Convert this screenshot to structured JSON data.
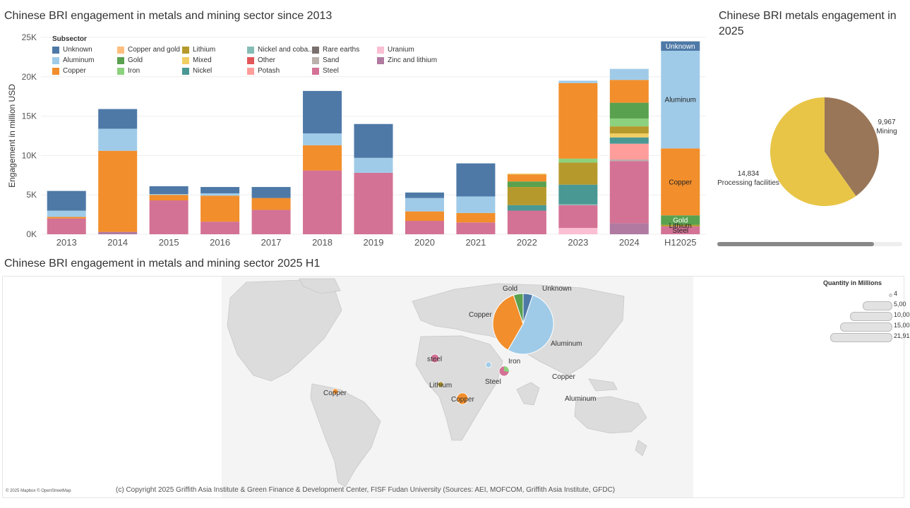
{
  "titles": {
    "bar": "Chinese BRI engagement in metals and mining sector since 2013",
    "pie": "Chinese BRI metals engagement in 2025",
    "map": "Chinese BRI engagement in metals and mining sector 2025 H1"
  },
  "colors": {
    "Unknown": "#4e79a7",
    "Aluminum": "#a0cbe8",
    "Copper": "#f28e2b",
    "Copper and gold": "#ffbe7d",
    "Gold": "#59a14f",
    "Iron": "#8cd17d",
    "Lithium": "#b6992d",
    "Mixed": "#f1ce63",
    "Nickel": "#499894",
    "Nickel and cobalt": "#86bcb6",
    "Other": "#e15759",
    "Potash": "#ff9d9a",
    "Rare earths": "#79706e",
    "Sand": "#bab0ac",
    "Steel": "#d37295",
    "Uranium": "#fabfd2",
    "Zinc and lithium": "#b07aa1",
    "Mining": "#9a7658",
    "Processing facilities": "#e8c547"
  },
  "legend": {
    "title": "Subsector",
    "items": [
      {
        "key": "Unknown",
        "label": "Unknown"
      },
      {
        "key": "Copper and gold",
        "label": "Copper and gold"
      },
      {
        "key": "Lithium",
        "label": "Lithium"
      },
      {
        "key": "Nickel and cobalt",
        "label": "Nickel and coba.."
      },
      {
        "key": "Rare earths",
        "label": "Rare earths"
      },
      {
        "key": "Uranium",
        "label": "Uranium"
      },
      {
        "key": "Aluminum",
        "label": "Aluminum"
      },
      {
        "key": "Gold",
        "label": "Gold"
      },
      {
        "key": "Mixed",
        "label": "Mixed"
      },
      {
        "key": "Other",
        "label": "Other"
      },
      {
        "key": "Sand",
        "label": "Sand"
      },
      {
        "key": "Zinc and lithium",
        "label": "Zinc and lithium"
      },
      {
        "key": "Copper",
        "label": "Copper"
      },
      {
        "key": "Iron",
        "label": "Iron"
      },
      {
        "key": "Nickel",
        "label": "Nickel"
      },
      {
        "key": "Potash",
        "label": "Potash"
      },
      {
        "key": "Steel",
        "label": "Steel"
      }
    ]
  },
  "chart_data": [
    {
      "type": "bar",
      "title": "Chinese BRI engagement in metals and mining sector since 2013",
      "ylabel": "Engagement in million USD",
      "xlabel": "",
      "ylim": [
        0,
        25000
      ],
      "yticks": [
        "0K",
        "5K",
        "10K",
        "15K",
        "20K",
        "25K"
      ],
      "categories": [
        "2013",
        "2014",
        "2015",
        "2016",
        "2017",
        "2018",
        "2019",
        "2020",
        "2021",
        "2022",
        "2023",
        "2024",
        "H12025"
      ],
      "stacks": [
        [
          {
            "s": "Steel",
            "v": 2000
          },
          {
            "s": "Copper",
            "v": 200
          },
          {
            "s": "Aluminum",
            "v": 800
          },
          {
            "s": "Unknown",
            "v": 2500
          }
        ],
        [
          {
            "s": "Zinc and lithium",
            "v": 300
          },
          {
            "s": "Copper",
            "v": 10300
          },
          {
            "s": "Aluminum",
            "v": 2800
          },
          {
            "s": "Unknown",
            "v": 2500
          }
        ],
        [
          {
            "s": "Steel",
            "v": 4300
          },
          {
            "s": "Copper",
            "v": 700
          },
          {
            "s": "Aluminum",
            "v": 100
          },
          {
            "s": "Unknown",
            "v": 1000
          }
        ],
        [
          {
            "s": "Steel",
            "v": 1600
          },
          {
            "s": "Copper",
            "v": 3300
          },
          {
            "s": "Aluminum",
            "v": 300
          },
          {
            "s": "Unknown",
            "v": 800
          }
        ],
        [
          {
            "s": "Steel",
            "v": 3100
          },
          {
            "s": "Copper",
            "v": 1500
          },
          {
            "s": "Unknown",
            "v": 1400
          }
        ],
        [
          {
            "s": "Steel",
            "v": 8100
          },
          {
            "s": "Copper",
            "v": 3200
          },
          {
            "s": "Aluminum",
            "v": 1500
          },
          {
            "s": "Unknown",
            "v": 5400
          }
        ],
        [
          {
            "s": "Steel",
            "v": 7800
          },
          {
            "s": "Aluminum",
            "v": 1900
          },
          {
            "s": "Unknown",
            "v": 4300
          }
        ],
        [
          {
            "s": "Steel",
            "v": 1700
          },
          {
            "s": "Copper",
            "v": 1200
          },
          {
            "s": "Aluminum",
            "v": 1700
          },
          {
            "s": "Unknown",
            "v": 700
          }
        ],
        [
          {
            "s": "Steel",
            "v": 1500
          },
          {
            "s": "Copper",
            "v": 1200
          },
          {
            "s": "Aluminum",
            "v": 2100
          },
          {
            "s": "Unknown",
            "v": 4200
          }
        ],
        [
          {
            "s": "Steel",
            "v": 3000
          },
          {
            "s": "Nickel",
            "v": 700
          },
          {
            "s": "Lithium",
            "v": 2300
          },
          {
            "s": "Gold",
            "v": 700
          },
          {
            "s": "Copper",
            "v": 900
          },
          {
            "s": "Mixed",
            "v": 100
          }
        ],
        [
          {
            "s": "Uranium",
            "v": 800
          },
          {
            "s": "Steel",
            "v": 2900
          },
          {
            "s": "Nickel and cobalt",
            "v": 100
          },
          {
            "s": "Nickel",
            "v": 2500
          },
          {
            "s": "Lithium",
            "v": 2800
          },
          {
            "s": "Iron",
            "v": 500
          },
          {
            "s": "Copper",
            "v": 9600
          },
          {
            "s": "Aluminum",
            "v": 300
          }
        ],
        [
          {
            "s": "Zinc and lithium",
            "v": 1400
          },
          {
            "s": "Steel",
            "v": 7900
          },
          {
            "s": "Sand",
            "v": 200
          },
          {
            "s": "Potash",
            "v": 2000
          },
          {
            "s": "Nickel",
            "v": 800
          },
          {
            "s": "Mixed",
            "v": 500
          },
          {
            "s": "Lithium",
            "v": 900
          },
          {
            "s": "Iron",
            "v": 1000
          },
          {
            "s": "Gold",
            "v": 2000
          },
          {
            "s": "Copper",
            "v": 2900
          },
          {
            "s": "Aluminum",
            "v": 1400
          }
        ],
        [
          {
            "s": "Steel",
            "v": 1000
          },
          {
            "s": "Lithium",
            "v": 200
          },
          {
            "s": "Gold",
            "v": 1200
          },
          {
            "s": "Copper",
            "v": 8500
          },
          {
            "s": "Aluminum",
            "v": 12400
          },
          {
            "s": "Unknown",
            "v": 1200
          }
        ]
      ],
      "segment_labels": [
        {
          "col": 12,
          "s": "Unknown",
          "text": "Unknown"
        },
        {
          "col": 12,
          "s": "Aluminum",
          "text": "Aluminum"
        },
        {
          "col": 12,
          "s": "Copper",
          "text": "Copper"
        },
        {
          "col": 12,
          "s": "Gold",
          "text": "Gold"
        },
        {
          "col": 12,
          "s": "Lithium",
          "text": "Lithium"
        },
        {
          "col": 12,
          "s": "Steel",
          "text": "Steel"
        }
      ]
    },
    {
      "type": "pie",
      "title": "Chinese BRI metals engagement in 2025",
      "slices": [
        {
          "label": "Mining",
          "value": 9967,
          "value_text": "9,967"
        },
        {
          "label": "Processing facilities",
          "value": 14834,
          "value_text": "14,834"
        }
      ]
    },
    {
      "type": "map",
      "title": "Chinese BRI engagement in metals and mining sector 2025 H1",
      "pie": {
        "slices": [
          {
            "s": "Unknown",
            "v": 1200
          },
          {
            "s": "Aluminum",
            "v": 12400
          },
          {
            "s": "Copper",
            "v": 8500
          },
          {
            "s": "Gold",
            "v": 1200
          }
        ],
        "labels": [
          "Unknown",
          "Aluminum",
          "Copper",
          "Gold"
        ]
      },
      "point_labels": [
        "steel",
        "Iron",
        "Steel",
        "Lithium",
        "Copper",
        "Copper",
        "Copper",
        "Aluminum"
      ],
      "size_legend": {
        "title": "Quantity in Millions",
        "entries": [
          "4",
          "5,00",
          "10,00",
          "15,00",
          "21,91"
        ]
      },
      "copyright": "(c) Copyright 2025 Griffith Asia Institute & Green Finance & Development Center, FISF Fudan University (Sources: AEI, MOFCOM, Griffith Asia Institute, GFDC)",
      "attribution": "© 2025 Mapbox © OpenStreetMap"
    }
  ]
}
